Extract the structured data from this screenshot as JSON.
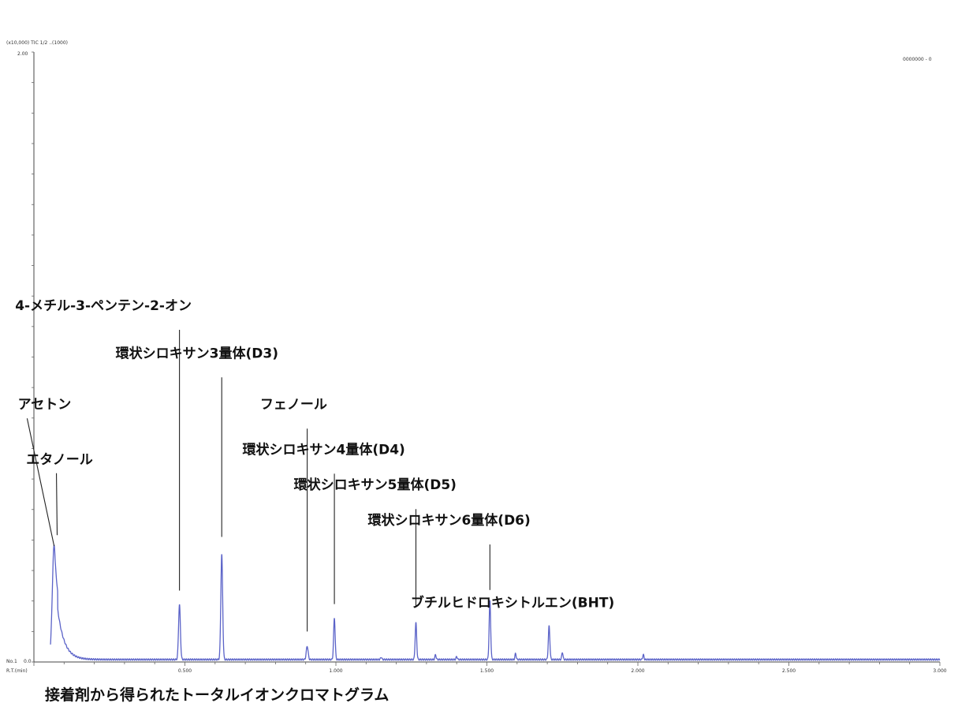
{
  "chart_data": {
    "type": "line",
    "title": "",
    "caption": "接着剤から得られたトータルイオンクロマトグラム",
    "header_text": "(x10,000) TIC 1/2 ..(1000)",
    "yaxis_top_label": "2.00",
    "yaxis_bottom_label": "0.0",
    "axis_corner_labels": [
      "No.1",
      "R.T.(min)"
    ],
    "legend_text": "0000000 - 0",
    "xlim": [
      0,
      3000
    ],
    "ylim": [
      0,
      1
    ],
    "x_ticks": [
      "0.500",
      "1.000",
      "1.500",
      "2.000",
      "2.500",
      "3.000"
    ],
    "x_tick_values": [
      500,
      1000,
      1500,
      2000,
      2500,
      3000
    ],
    "grid": false,
    "series": [
      {
        "color": "#5b63c8",
        "baseline": 0.004
      }
    ],
    "peaks": [
      {
        "x": 67,
        "y": 0.188,
        "width": 6,
        "tail": 22
      },
      {
        "x": 482,
        "y": 0.09,
        "width": 3
      },
      {
        "x": 622,
        "y": 0.172,
        "width": 3
      },
      {
        "x": 905,
        "y": 0.022,
        "width": 3
      },
      {
        "x": 995,
        "y": 0.068,
        "width": 2.5
      },
      {
        "x": 1265,
        "y": 0.06,
        "width": 2.5
      },
      {
        "x": 1510,
        "y": 0.096,
        "width": 2.5
      },
      {
        "x": 1706,
        "y": 0.055,
        "width": 2.5
      },
      {
        "x": 1595,
        "y": 0.01,
        "width": 2
      },
      {
        "x": 1330,
        "y": 0.008,
        "width": 2
      },
      {
        "x": 1750,
        "y": 0.012,
        "width": 2
      },
      {
        "x": 2018,
        "y": 0.008,
        "width": 2
      },
      {
        "x": 1400,
        "y": 0.005,
        "width": 2
      },
      {
        "x": 1150,
        "y": 0.004,
        "width": 2
      }
    ],
    "annotations": [
      {
        "text": "アセトン",
        "x": 35,
        "y": 0.415,
        "leader_to": [
          67,
          0.19
        ]
      },
      {
        "text": "エタノール",
        "x": 85,
        "y": 0.325,
        "leader_to": [
          77,
          0.208
        ]
      },
      {
        "text": "4-メチル-3-ペンテン-2-オン",
        "x": 230,
        "y": 0.577,
        "leader_to": [
          482,
          0.117
        ]
      },
      {
        "text": "環状シロキサン3量体(D3)",
        "x": 540,
        "y": 0.499,
        "leader_to": [
          622,
          0.205
        ]
      },
      {
        "text": "フェノール",
        "x": 860,
        "y": 0.415,
        "leader_to": [
          905,
          0.05
        ]
      },
      {
        "text": "環状シロキサン4量体(D4)",
        "x": 960,
        "y": 0.341,
        "leader_to": [
          995,
          0.095
        ]
      },
      {
        "text": "環状シロキサン5量体(D5)",
        "x": 1130,
        "y": 0.283,
        "leader_to": [
          1265,
          0.09
        ]
      },
      {
        "text": "環状シロキサン6量体(D6)",
        "x": 1375,
        "y": 0.225,
        "leader_to": [
          1510,
          0.118
        ]
      },
      {
        "text": "ブチルヒドロキシトルエン(BHT)",
        "x": 1585,
        "y": 0.09,
        "leader_to": null
      }
    ]
  }
}
